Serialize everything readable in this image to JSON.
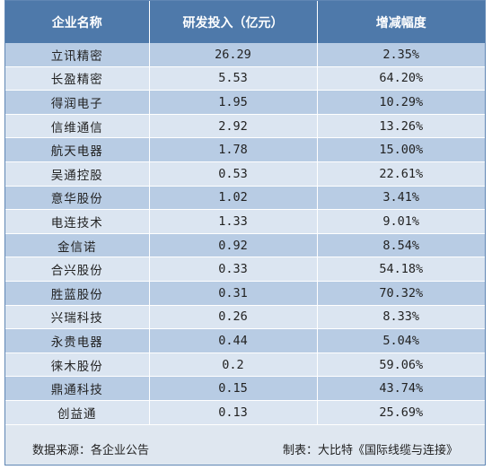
{
  "table": {
    "headers": [
      "企业名称",
      "研发投入（亿元）",
      "增减幅度"
    ],
    "rows": [
      {
        "name": "立讯精密",
        "rd": "26.29",
        "change": "2.35%"
      },
      {
        "name": "长盈精密",
        "rd": "5.53",
        "change": "64.20%"
      },
      {
        "name": "得润电子",
        "rd": "1.95",
        "change": "10.29%"
      },
      {
        "name": "信维通信",
        "rd": "2.92",
        "change": "13.26%"
      },
      {
        "name": "航天电器",
        "rd": "1.78",
        "change": "15.00%"
      },
      {
        "name": "吴通控股",
        "rd": "0.53",
        "change": "22.61%"
      },
      {
        "name": "意华股份",
        "rd": "1.02",
        "change": "3.41%"
      },
      {
        "name": "电连技术",
        "rd": "1.33",
        "change": "9.01%"
      },
      {
        "name": "金信诺",
        "rd": "0.92",
        "change": "8.54%"
      },
      {
        "name": "合兴股份",
        "rd": "0.33",
        "change": "54.18%"
      },
      {
        "name": "胜蓝股份",
        "rd": "0.31",
        "change": "70.32%"
      },
      {
        "name": "兴瑞科技",
        "rd": "0.26",
        "change": "8.33%"
      },
      {
        "name": "永贵电器",
        "rd": "0.44",
        "change": "5.04%"
      },
      {
        "name": "徕木股份",
        "rd": "0.2",
        "change": "59.06%"
      },
      {
        "name": "鼎通科技",
        "rd": "0.15",
        "change": "43.74%"
      },
      {
        "name": "创益通",
        "rd": "0.13",
        "change": "25.69%"
      }
    ]
  },
  "footer": {
    "source": "数据来源：各企业公告",
    "maker": "制表：大比特《国际线缆与连接》"
  },
  "colors": {
    "header_bg": "#4e79aa",
    "row_odd": "#b8cce4",
    "row_even": "#dbe5f1"
  }
}
